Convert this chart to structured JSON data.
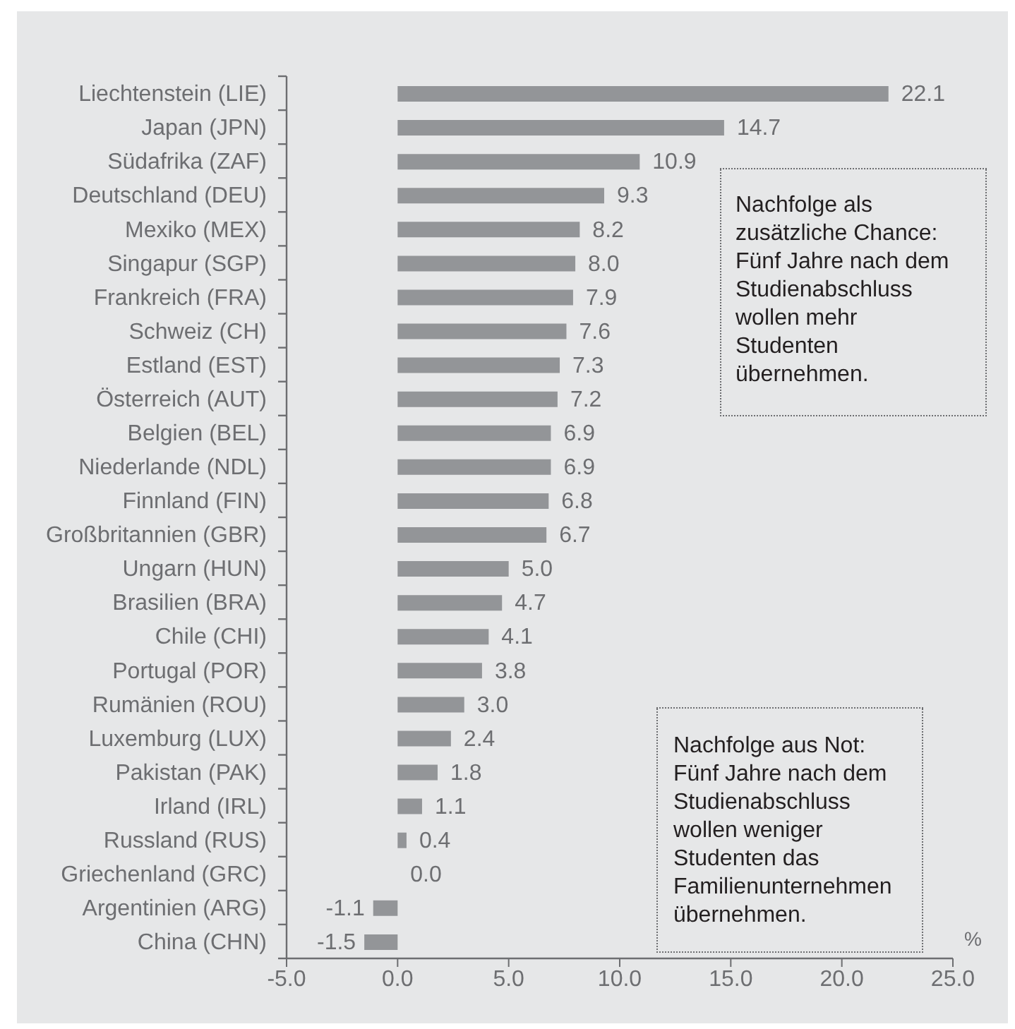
{
  "chart_data": {
    "type": "bar",
    "orientation": "horizontal",
    "categories": [
      "Liechtenstein (LIE)",
      "Japan (JPN)",
      "Südafrika (ZAF)",
      "Deutschland (DEU)",
      "Mexiko (MEX)",
      "Singapur (SGP)",
      "Frankreich (FRA)",
      "Schweiz (CH)",
      "Estland (EST)",
      "Österreich (AUT)",
      "Belgien (BEL)",
      "Niederlande (NDL)",
      "Finnland (FIN)",
      "Großbritannien (GBR)",
      "Ungarn (HUN)",
      "Brasilien (BRA)",
      "Chile (CHI)",
      "Portugal (POR)",
      "Rumänien (ROU)",
      "Luxemburg (LUX)",
      "Pakistan (PAK)",
      "Irland (IRL)",
      "Russland (RUS)",
      "Griechenland (GRC)",
      "Argentinien (ARG)",
      "China (CHN)"
    ],
    "values": [
      22.1,
      14.7,
      10.9,
      9.3,
      8.2,
      8.0,
      7.9,
      7.6,
      7.3,
      7.2,
      6.9,
      6.9,
      6.8,
      6.7,
      5.0,
      4.7,
      4.1,
      3.8,
      3.0,
      2.4,
      1.8,
      1.1,
      0.4,
      0.0,
      -1.1,
      -1.5
    ],
    "value_labels": [
      "22.1",
      "14.7",
      "10.9",
      "9.3",
      "8.2",
      "8.0",
      "7.9",
      "7.6",
      "7.3",
      "7.2",
      "6.9",
      "6.9",
      "6.8",
      "6.7",
      "5.0",
      "4.7",
      "4.1",
      "3.8",
      "3.0",
      "2.4",
      "1.8",
      "1.1",
      "0.4",
      "0.0",
      "-1.1",
      "-1.5"
    ],
    "color": "#939598",
    "xlim": [
      -5,
      25
    ],
    "xticks": [
      {
        "value": -5,
        "label": "-5.0"
      },
      {
        "value": 0,
        "label": "0.0"
      },
      {
        "value": 5,
        "label": "5.0"
      },
      {
        "value": 10,
        "label": "10.0"
      },
      {
        "value": 15,
        "label": "15.0"
      },
      {
        "value": 20,
        "label": "20.0"
      },
      {
        "value": 25,
        "label": "25.0"
      }
    ],
    "xlabel": "%",
    "annotations": [
      "Nachfolge als\nzusätzliche Chance:\nFünf Jahre nach dem\nStudienabschluss\nwollen mehr\nStudenten\nübernehmen.",
      "Nachfolge aus Not:\nFünf Jahre nach dem\nStudienabschluss\nwollen weniger\nStudenten das\nFamilienunternehmen\nübernehmen."
    ]
  }
}
